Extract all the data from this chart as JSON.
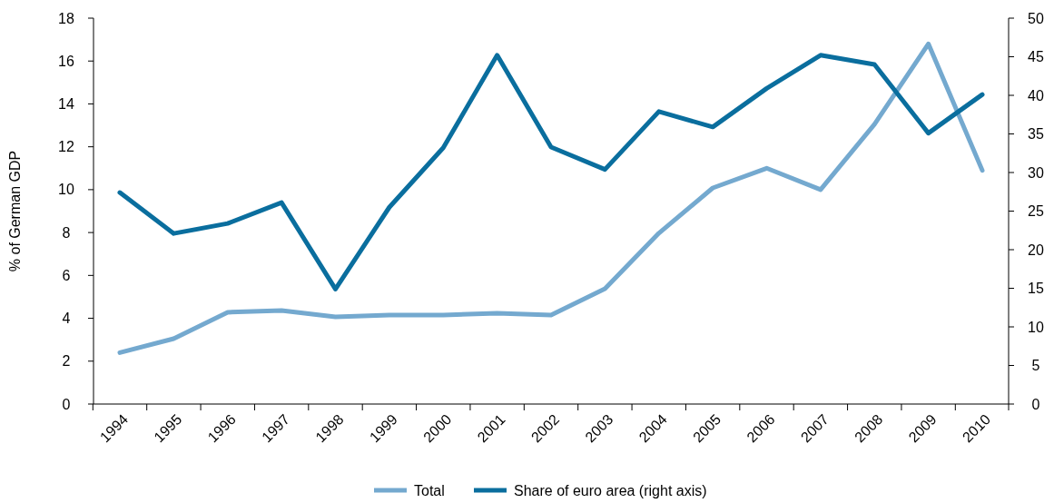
{
  "chart_data": {
    "type": "line",
    "ylabel": "% of German GDP",
    "categories": [
      "1994",
      "1995",
      "1996",
      "1997",
      "1998",
      "1999",
      "2000",
      "2001",
      "2002",
      "2003",
      "2004",
      "2005",
      "2006",
      "2007",
      "2008",
      "2009",
      "2010"
    ],
    "series": [
      {
        "name": "Total",
        "color": "#74a9cf",
        "values": [
          2.4,
          3.05,
          4.28,
          4.36,
          4.07,
          4.15,
          4.15,
          4.24,
          4.15,
          5.38,
          7.97,
          10.08,
          11.0,
          10.0,
          13.05,
          16.8,
          10.9
        ]
      },
      {
        "name": "Share of euro area (right axis)",
        "color": "#0a6e9e",
        "axis": "y2",
        "values": [
          27.4,
          22.1,
          23.4,
          26.1,
          14.9,
          25.5,
          33.2,
          45.2,
          33.3,
          30.4,
          37.9,
          35.9,
          40.9,
          45.2,
          44.0,
          35.1,
          40.1
        ]
      }
    ],
    "ylim": [
      0,
      18
    ],
    "yticks": [
      0,
      2,
      4,
      6,
      8,
      10,
      12,
      14,
      16,
      18
    ],
    "y2lim": [
      0,
      50
    ],
    "y2ticks": [
      0,
      5,
      10,
      15,
      20,
      25,
      30,
      35,
      40,
      45,
      50
    ],
    "legend": "bottom",
    "grid": false,
    "marker": "none",
    "line_style": "solid"
  }
}
